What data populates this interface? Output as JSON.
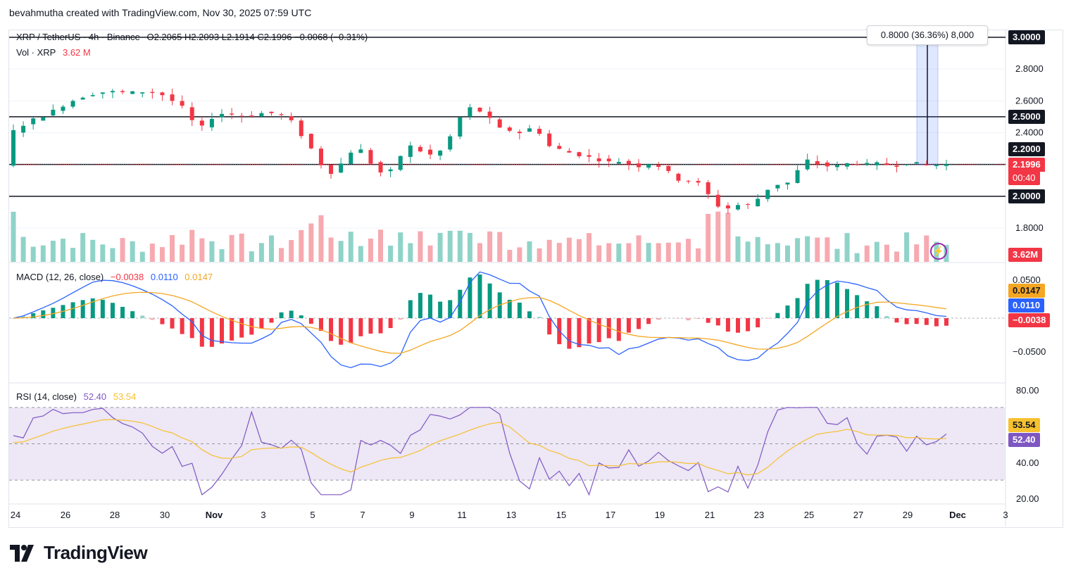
{
  "header": "bevahmutha created with TradingView.com, Nov 30, 2025 07:59 UTC",
  "brand": "TradingView",
  "symbol_line": {
    "symbol": "XRP / TetherUS · 4h · Binance",
    "ohlc": "O2.2065  H2.2093  L2.1914  C2.1996  −0.0068 (−0.31%)"
  },
  "volume_legend": {
    "label": "Vol · XRP",
    "value": "3.62 M"
  },
  "measure_tooltip": "0.8000 (36.36%) 8,000",
  "macd_legend": {
    "label": "MACD (12, 26, close)",
    "v1": "−0.0038",
    "v2": "0.0110",
    "v3": "0.0147"
  },
  "rsi_legend": {
    "label": "RSI (14, close)",
    "v1": "52.40",
    "v2": "53.54"
  },
  "price_axis": {
    "ticks": [
      "2.8000",
      "2.6000",
      "2.4000",
      "1.8000"
    ],
    "level_tags": [
      "3.0000",
      "2.5000",
      "2.2000",
      "2.0000"
    ],
    "last_price": "2.1996",
    "countdown": "00:40",
    "volume_tag": "3.62M"
  },
  "macd_axis": {
    "ticks": [
      "0.0500",
      "−0.0500"
    ],
    "tags": [
      "0.0147",
      "0.0110",
      "−0.0038"
    ]
  },
  "rsi_axis": {
    "ticks": [
      "80.00",
      "40.00",
      "20.00"
    ],
    "tags": [
      "53.54",
      "52.40"
    ]
  },
  "time_axis": [
    "24",
    "26",
    "28",
    "30",
    "Nov",
    "3",
    "5",
    "7",
    "9",
    "11",
    "13",
    "15",
    "17",
    "19",
    "21",
    "23",
    "25",
    "27",
    "29",
    "Dec",
    "3"
  ],
  "colors": {
    "up": "#089981",
    "down": "#f23645",
    "vol_up": "#8fd3c8",
    "vol_down": "#f7a9b0",
    "macd": "#2962ff",
    "signal": "#f5a623",
    "rsi": "#7e57c2",
    "rsi_ma": "#f7c12f",
    "rsi_band": "#ede7f6"
  },
  "chart_data": {
    "type": "candlestick",
    "symbol": "XRP / TetherUS",
    "interval": "4h",
    "price_range": [
      1.75,
      3.05
    ],
    "horizontal_levels": [
      3.0,
      2.5,
      2.2,
      2.0
    ],
    "price_path": [
      [
        0,
        2.39
      ],
      [
        2,
        2.47
      ],
      [
        4,
        2.52
      ],
      [
        6,
        2.59
      ],
      [
        8,
        2.64
      ],
      [
        10,
        2.66
      ],
      [
        12,
        2.65
      ],
      [
        14,
        2.66
      ],
      [
        16,
        2.63
      ],
      [
        17,
        2.57
      ],
      [
        18,
        2.55
      ],
      [
        19,
        2.4
      ],
      [
        20,
        2.47
      ],
      [
        21,
        2.52
      ],
      [
        22,
        2.52
      ],
      [
        24,
        2.5
      ],
      [
        26,
        2.53
      ],
      [
        28,
        2.5
      ],
      [
        29,
        2.44
      ],
      [
        30,
        2.33
      ],
      [
        31,
        2.27
      ],
      [
        32,
        2.13
      ],
      [
        33,
        2.17
      ],
      [
        34,
        2.24
      ],
      [
        35,
        2.32
      ],
      [
        36,
        2.26
      ],
      [
        37,
        2.16
      ],
      [
        38,
        2.14
      ],
      [
        39,
        2.18
      ],
      [
        40,
        2.33
      ],
      [
        41,
        2.3
      ],
      [
        42,
        2.27
      ],
      [
        43,
        2.25
      ],
      [
        44,
        2.32
      ],
      [
        45,
        2.43
      ],
      [
        46,
        2.56
      ],
      [
        47,
        2.55
      ],
      [
        48,
        2.52
      ],
      [
        49,
        2.45
      ],
      [
        50,
        2.4
      ],
      [
        51,
        2.43
      ],
      [
        52,
        2.37
      ],
      [
        53,
        2.48
      ],
      [
        54,
        2.32
      ],
      [
        55,
        2.31
      ],
      [
        56,
        2.28
      ],
      [
        57,
        2.27
      ],
      [
        58,
        2.25
      ],
      [
        59,
        2.24
      ],
      [
        60,
        2.22
      ],
      [
        61,
        2.21
      ],
      [
        62,
        2.23
      ],
      [
        63,
        2.18
      ],
      [
        64,
        2.2
      ],
      [
        65,
        2.21
      ],
      [
        66,
        2.17
      ],
      [
        67,
        2.13
      ],
      [
        68,
        2.08
      ],
      [
        69,
        2.12
      ],
      [
        70,
        2.04
      ],
      [
        71,
        1.98
      ],
      [
        72,
        1.9
      ],
      [
        73,
        1.95
      ],
      [
        74,
        1.94
      ],
      [
        75,
        1.95
      ],
      [
        76,
        2.02
      ],
      [
        77,
        2.07
      ],
      [
        78,
        2.08
      ],
      [
        79,
        2.09
      ],
      [
        80,
        2.23
      ],
      [
        81,
        2.22
      ],
      [
        82,
        2.19
      ],
      [
        83,
        2.19
      ],
      [
        84,
        2.19
      ],
      [
        85,
        2.22
      ],
      [
        86,
        2.2
      ],
      [
        87,
        2.2
      ],
      [
        88,
        2.21
      ],
      [
        89,
        2.19
      ],
      [
        90,
        2.2
      ],
      [
        91,
        2.22
      ],
      [
        92,
        2.19
      ],
      [
        93,
        2.2
      ],
      [
        94,
        2.2
      ]
    ],
    "volume_peak_m": 13,
    "macd": {
      "params": "12, 26, close",
      "macd": 0.011,
      "signal": 0.0147,
      "histogram": -0.0038
    },
    "rsi": {
      "params": "14, close",
      "rsi": 52.4,
      "ma": 53.54,
      "levels": [
        70,
        50,
        30
      ],
      "range": [
        18,
        82
      ]
    },
    "date_labels": [
      "24",
      "26",
      "28",
      "30",
      "Nov",
      "3",
      "5",
      "7",
      "9",
      "11",
      "13",
      "15",
      "17",
      "19",
      "21",
      "23",
      "25",
      "27",
      "29",
      "Dec",
      "3"
    ]
  }
}
